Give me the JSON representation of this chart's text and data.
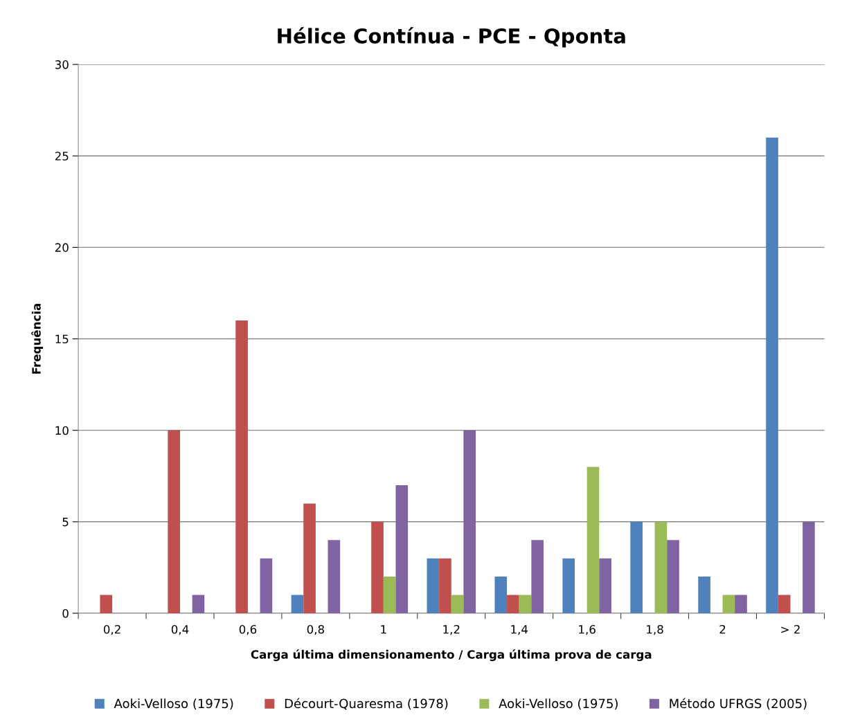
{
  "chart_data": {
    "type": "bar",
    "title": "Hélice Contínua - PCE - Qponta",
    "xlabel": "Carga última dimensionamento / Carga última prova de carga",
    "ylabel": "Frequência",
    "categories": [
      "0,2",
      "0,4",
      "0,6",
      "0,8",
      "1",
      "1,2",
      "1,4",
      "1,6",
      "1,8",
      "2",
      "> 2"
    ],
    "series": [
      {
        "name": "Aoki-Velloso (1975)",
        "color": "#4f81bd",
        "values": [
          0,
          0,
          0,
          1,
          0,
          3,
          2,
          3,
          5,
          2,
          26
        ]
      },
      {
        "name": "Décourt-Quaresma (1978)",
        "color": "#c0504d",
        "values": [
          1,
          10,
          16,
          6,
          5,
          3,
          1,
          0,
          0,
          0,
          1
        ]
      },
      {
        "name": "Aoki-Velloso (1975)",
        "color": "#9bbb59",
        "values": [
          0,
          0,
          0,
          0,
          2,
          1,
          1,
          8,
          5,
          1,
          0
        ]
      },
      {
        "name": "Método UFRGS (2005)",
        "color": "#8064a2",
        "values": [
          0,
          1,
          3,
          4,
          7,
          10,
          4,
          3,
          4,
          1,
          5
        ]
      }
    ],
    "ylim": [
      0,
      30
    ],
    "yticks": [
      0,
      5,
      10,
      15,
      20,
      25,
      30
    ],
    "grid": "y",
    "legend": "bottom"
  }
}
